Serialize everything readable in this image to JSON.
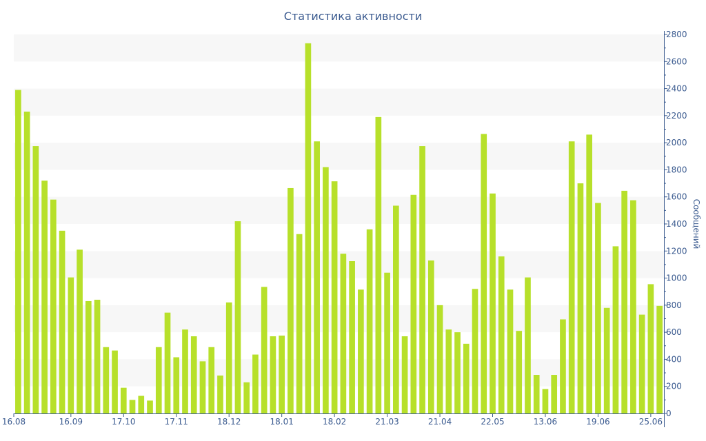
{
  "chart_data": {
    "type": "bar",
    "title": "Статистика активности",
    "ylabel": "Сообщений",
    "xlabel": "",
    "ylim": [
      0,
      2800
    ],
    "y_ticks": [
      0,
      200,
      400,
      600,
      800,
      1000,
      1200,
      1400,
      1600,
      1800,
      2000,
      2200,
      2400,
      2600,
      2800
    ],
    "y_axis_side": "right",
    "grid": "alternating horizontal bands",
    "x_tick_labels": [
      {
        "index": 0,
        "label": "16.08"
      },
      {
        "index": 6,
        "label": "16.09"
      },
      {
        "index": 12,
        "label": "17.10"
      },
      {
        "index": 18,
        "label": "17.11"
      },
      {
        "index": 24,
        "label": "18.12"
      },
      {
        "index": 30,
        "label": "18.01"
      },
      {
        "index": 36,
        "label": "18.02"
      },
      {
        "index": 42,
        "label": "21.03"
      },
      {
        "index": 48,
        "label": "21.04"
      },
      {
        "index": 54,
        "label": "22.05"
      },
      {
        "index": 60,
        "label": "13.06"
      },
      {
        "index": 66,
        "label": "19.06"
      },
      {
        "index": 72,
        "label": "25.06"
      }
    ],
    "values": [
      2390,
      2230,
      1975,
      1720,
      1580,
      1350,
      1005,
      1210,
      830,
      840,
      490,
      465,
      190,
      100,
      130,
      95,
      490,
      745,
      415,
      620,
      570,
      385,
      490,
      280,
      820,
      1420,
      230,
      435,
      935,
      570,
      575,
      1665,
      1325,
      2735,
      2010,
      1820,
      1715,
      1180,
      1125,
      915,
      1360,
      2190,
      1040,
      1535,
      570,
      1615,
      1975,
      1130,
      800,
      620,
      600,
      515,
      920,
      2065,
      1625,
      1160,
      915,
      610,
      1005,
      285,
      180,
      285,
      695,
      2010,
      1700,
      2060,
      1555,
      780,
      1235,
      1645,
      1575,
      730,
      955,
      795
    ],
    "colors": {
      "bar": "#b7e02a",
      "axis": "#3a5a8f",
      "band": "#f7f7f7"
    }
  }
}
